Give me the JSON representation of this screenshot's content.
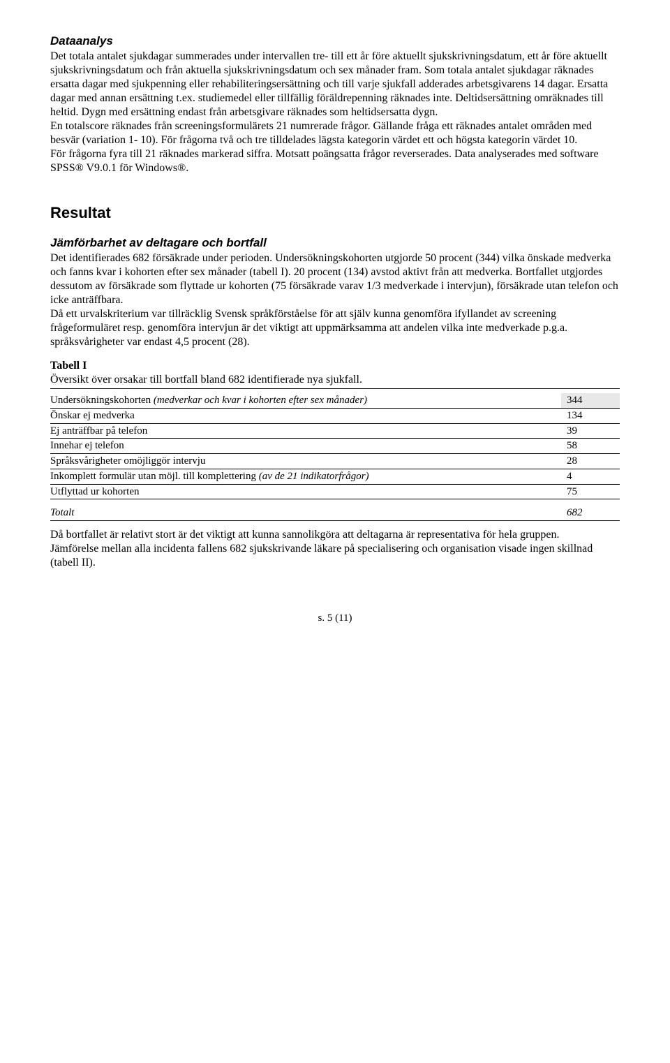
{
  "section1": {
    "heading": "Dataanalys",
    "body": "Det totala antalet sjukdagar summerades under intervallen tre- till ett år före aktuellt sjukskrivningsdatum, ett år före aktuellt sjukskrivningsdatum och från aktuella sjukskrivningsdatum och sex månader fram. Som totala antalet sjukdagar räknades ersatta dagar med sjukpenning eller rehabiliteringsersättning och till varje sjukfall adderades arbetsgivarens 14 dagar. Ersatta dagar med annan ersättning t.ex. studiemedel eller tillfällig föräldrepenning räknades inte. Deltidsersättning omräknades till heltid. Dygn med ersättning endast från arbetsgivare räknades som heltidsersatta dygn.",
    "body2": "En totalscore räknades från screeningsformulärets 21 numrerade frågor. Gällande fråga ett räknades antalet områden med besvär (variation 1- 10). För frågorna två och tre tilldelades lägsta kategorin värdet ett och högsta kategorin värdet 10.",
    "body3": "För frågorna fyra till 21 räknades markerad siffra. Motsatt poängsatta frågor reverserades. Data analyserades med software SPSS® V9.0.1 för Windows®."
  },
  "section2": {
    "heading": "Resultat",
    "sub": "Jämförbarhet av deltagare och bortfall",
    "body": "Det identifierades 682 försäkrade under perioden. Undersökningskohorten utgjorde 50 procent (344) vilka önskade medverka och fanns kvar i kohorten efter sex månader (tabell I). 20 procent (134) avstod aktivt från att medverka. Bortfallet utgjordes dessutom av försäkrade som flyttade ur kohorten (75 försäkrade varav 1/3 medverkade i intervjun), försäkrade utan telefon och icke anträffbara.",
    "body2": "Då ett urvalskriterium var tillräcklig Svensk språkförståelse för att själv kunna genomföra ifyllandet av screening frågeformuläret resp. genomföra intervjun är det viktigt att uppmärksamma att andelen vilka inte medverkade p.g.a. språksvårigheter var endast 4,5 procent (28)."
  },
  "table": {
    "title": "Tabell I",
    "caption": "Översikt över orsakar till bortfall bland 682 identifierade nya sjukfall.",
    "head_label_pre": "Undersökningskohorten ",
    "head_label_italic": "(medverkar och kvar i kohorten efter sex månader)",
    "head_val": "344",
    "rows": [
      {
        "label": "Önskar ej medverka",
        "val": "134"
      },
      {
        "label": "Ej anträffbar på telefon",
        "val": "39"
      },
      {
        "label": "Innehar ej telefon",
        "val": "58"
      },
      {
        "label": "Språksvårigheter omöjliggör intervju",
        "val": "28"
      }
    ],
    "row_inkomplett_pre": "Inkomplett formulär utan möjl. till komplettering ",
    "row_inkomplett_italic": "(av de 21 indikatorfrågor)",
    "row_inkomplett_val": "4",
    "row_utflyttad_label": "Utflyttad ur kohorten",
    "row_utflyttad_val": "75",
    "total_label": "Totalt",
    "total_val": "682"
  },
  "section3": {
    "body": "Då bortfallet är relativt stort är det viktigt att kunna sannolikgöra att deltagarna är representativa för hela gruppen.",
    "body2": "Jämförelse mellan alla incidenta fallens 682 sjukskrivande läkare på specialisering och organisation visade ingen skillnad (tabell II)."
  },
  "footer": "s. 5 (11)"
}
